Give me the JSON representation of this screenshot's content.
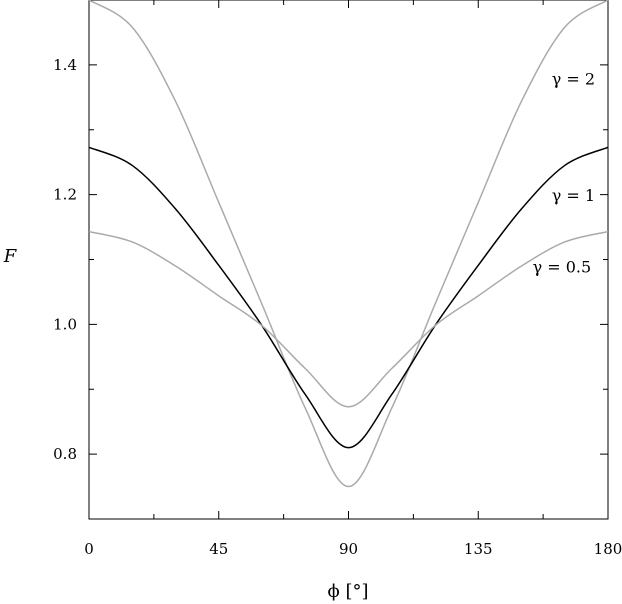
{
  "chart_data": {
    "type": "line",
    "xlabel": "ϕ  [°]",
    "ylabel": "F",
    "xlim": [
      0,
      180
    ],
    "ylim": [
      0.7,
      1.5
    ],
    "x_ticks": [
      0,
      45,
      90,
      135,
      180
    ],
    "x_tick_labels": [
      "0",
      "45",
      "90",
      "135",
      "180"
    ],
    "y_ticks": [
      0.8,
      1.0,
      1.2,
      1.4
    ],
    "y_tick_labels": [
      "0.8",
      "1.0",
      "1.2",
      "1.4"
    ],
    "grid": false,
    "series": [
      {
        "name": "γ = 2",
        "color": "#aaaaaa",
        "points": [
          [
            0,
            1.5
          ],
          [
            15,
            1.458
          ],
          [
            30,
            1.344
          ],
          [
            45,
            1.188
          ],
          [
            60,
            1.031
          ],
          [
            75,
            0.871
          ],
          [
            90,
            0.75
          ],
          [
            105,
            0.871
          ],
          [
            120,
            1.031
          ],
          [
            135,
            1.188
          ],
          [
            150,
            1.344
          ],
          [
            165,
            1.458
          ],
          [
            180,
            1.5
          ]
        ]
      },
      {
        "name": "γ = 1",
        "color": "#000000",
        "points": [
          [
            0,
            1.273
          ],
          [
            15,
            1.245
          ],
          [
            30,
            1.178
          ],
          [
            45,
            1.091
          ],
          [
            60,
            0.998
          ],
          [
            75,
            0.892
          ],
          [
            90,
            0.81
          ],
          [
            105,
            0.892
          ],
          [
            120,
            0.998
          ],
          [
            135,
            1.091
          ],
          [
            150,
            1.178
          ],
          [
            165,
            1.245
          ],
          [
            180,
            1.273
          ]
        ]
      },
      {
        "name": "γ = 0.5",
        "color": "#aaaaaa",
        "points": [
          [
            0,
            1.143
          ],
          [
            15,
            1.127
          ],
          [
            30,
            1.09
          ],
          [
            45,
            1.044
          ],
          [
            60,
            0.998
          ],
          [
            75,
            0.932
          ],
          [
            90,
            0.873
          ],
          [
            105,
            0.932
          ],
          [
            120,
            0.998
          ],
          [
            135,
            1.044
          ],
          [
            150,
            1.09
          ],
          [
            165,
            1.127
          ],
          [
            180,
            1.143
          ]
        ]
      }
    ],
    "annotations": [
      {
        "text": "γ = 2",
        "x": 168,
        "y": 1.37
      },
      {
        "text": "γ = 1",
        "x": 168,
        "y": 1.19
      },
      {
        "text": "γ = 0.5",
        "x": 164,
        "y": 1.08
      }
    ]
  }
}
